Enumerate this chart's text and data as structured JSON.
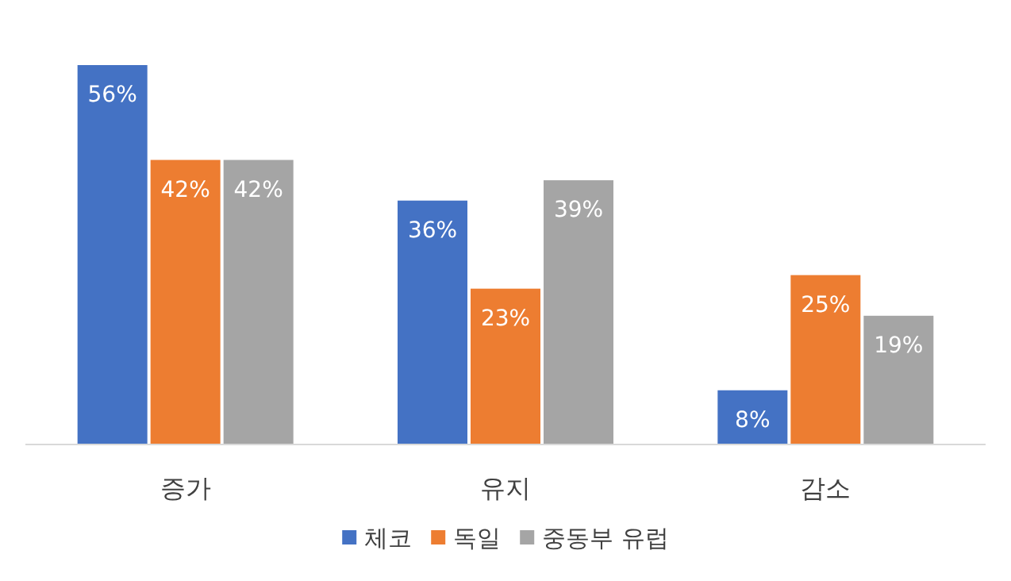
{
  "chart_data": {
    "type": "bar",
    "categories": [
      "증가",
      "유지",
      "감소"
    ],
    "series": [
      {
        "name": "체코",
        "color": "#4472c4",
        "values": [
          56,
          36,
          8
        ],
        "value_labels": [
          "56%",
          "36%",
          "8%"
        ]
      },
      {
        "name": "독일",
        "color": "#ed7d31",
        "values": [
          42,
          23,
          25
        ],
        "value_labels": [
          "42%",
          "23%",
          "25%"
        ]
      },
      {
        "name": "중동부 유럽",
        "color": "#a5a5a5",
        "values": [
          42,
          39,
          19
        ],
        "value_labels": [
          "42%",
          "39%",
          "19%"
        ]
      }
    ],
    "legend": "bottom"
  }
}
